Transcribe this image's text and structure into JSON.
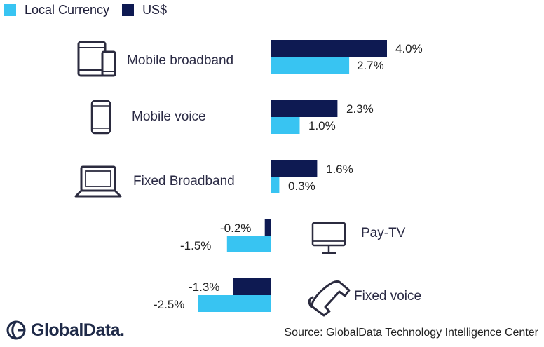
{
  "legend": {
    "local_label": "Local Currency",
    "usd_label": "US$"
  },
  "colors": {
    "local": "#38c4f2",
    "usd": "#0e1a52",
    "icon": "#2b2b3f"
  },
  "chart_data": {
    "type": "bar",
    "orientation": "horizontal",
    "categories": [
      "Mobile broadband",
      "Mobile voice",
      "Fixed Broadband",
      "Pay-TV",
      "Fixed voice"
    ],
    "series": [
      {
        "name": "US$",
        "values": [
          4.0,
          2.3,
          1.6,
          -0.2,
          -1.3
        ]
      },
      {
        "name": "Local Currency",
        "values": [
          2.7,
          1.0,
          0.3,
          -1.5,
          -2.5
        ]
      }
    ],
    "value_labels": {
      "usd": [
        "4.0%",
        "2.3%",
        "1.6%",
        "-0.2%",
        "-1.3%"
      ],
      "local": [
        "2.7%",
        "1.0%",
        "0.3%",
        "-1.5%",
        "-2.5%"
      ]
    },
    "legend_position": "top-left",
    "grid": false
  },
  "icons": [
    "tablet-phone-icon",
    "mobile-phone-icon",
    "laptop-icon",
    "tv-monitor-icon",
    "telephone-handset-icon"
  ],
  "footer": {
    "brand": "GlobalData.",
    "source": "Source: GlobalData Technology Intelligence Center"
  }
}
